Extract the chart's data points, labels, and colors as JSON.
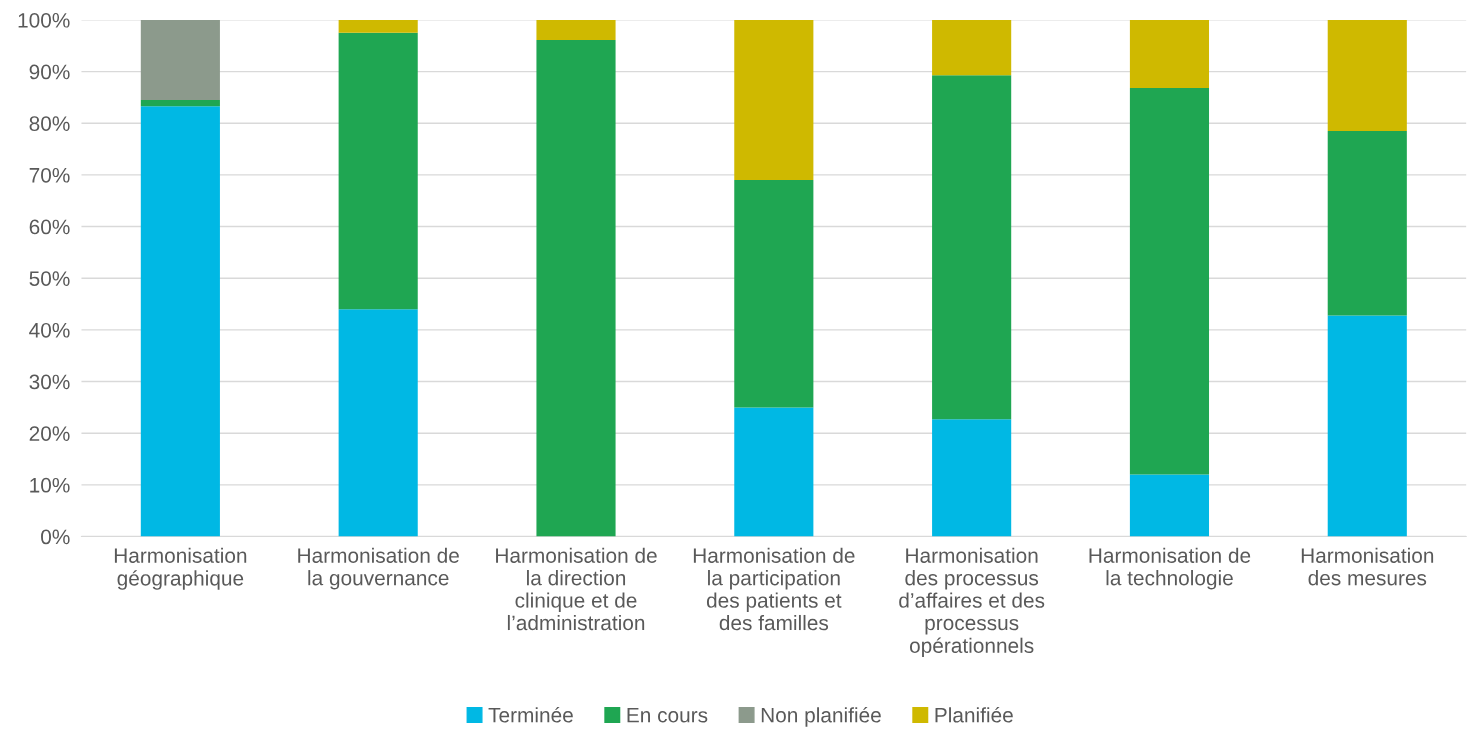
{
  "chart_data": {
    "type": "bar",
    "stacked": true,
    "categories": [
      "Harmonisation\ngéographique",
      "Harmonisation de\nla gouvernance",
      "Harmonisation de\nla direction\nclinique et de\nl’administration",
      "Harmonisation de\nla participation\ndes patients et\ndes familles",
      "Harmonisation\ndes processus\nd’affaires et des\nprocessus\nopérationnels",
      "Harmonisation de\nla technologie",
      "Harmonisation\ndes mesures"
    ],
    "series": [
      {
        "name": "Terminée",
        "color": "#00b8e4",
        "values": [
          83.3,
          44.0,
          0,
          25.0,
          22.7,
          12.0,
          42.8
        ]
      },
      {
        "name": "En cours",
        "color": "#1fa652",
        "values": [
          1.2,
          53.5,
          96.1,
          44.0,
          66.6,
          74.8,
          35.7
        ]
      },
      {
        "name": "Non planifiée",
        "color": "#8c9a8c",
        "values": [
          15.5,
          0,
          0,
          0,
          0,
          0,
          0
        ]
      },
      {
        "name": "Planifiée",
        "color": "#cfb900",
        "values": [
          0,
          2.5,
          3.9,
          31.0,
          10.7,
          13.2,
          21.5
        ]
      }
    ],
    "ylim": [
      0,
      100
    ],
    "yticks": [
      {
        "value": 0,
        "label": "0%"
      },
      {
        "value": 10,
        "label": "10%"
      },
      {
        "value": 20,
        "label": "20%"
      },
      {
        "value": 30,
        "label": "30%"
      },
      {
        "value": 40,
        "label": "40%"
      },
      {
        "value": 50,
        "label": "50%"
      },
      {
        "value": 60,
        "label": "60%"
      },
      {
        "value": 70,
        "label": "70%"
      },
      {
        "value": 80,
        "label": "80%"
      },
      {
        "value": 90,
        "label": "90%"
      },
      {
        "value": 100,
        "label": "100%"
      }
    ],
    "grid": "y",
    "legend": "bottom"
  }
}
